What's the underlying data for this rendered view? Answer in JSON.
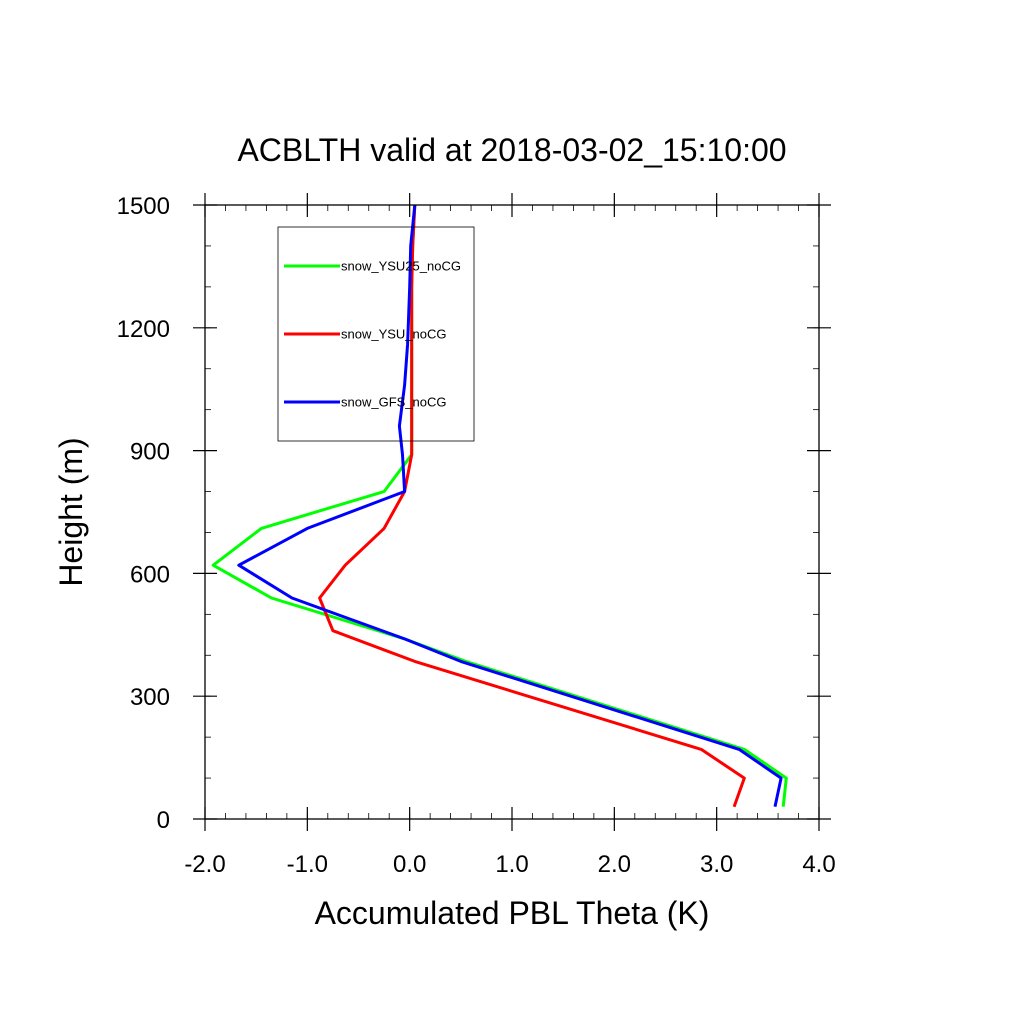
{
  "chart_data": {
    "type": "line",
    "title": "ACBLTH valid at 2018-03-02_15:10:00",
    "xlabel": "Accumulated PBL Theta (K)",
    "ylabel": "Height (m)",
    "xlim": [
      -2.0,
      4.0
    ],
    "ylim": [
      0,
      1500
    ],
    "x_ticks": [
      -2.0,
      -1.0,
      0.0,
      1.0,
      2.0,
      3.0,
      4.0
    ],
    "x_tick_labels": [
      "-2.0",
      "-1.0",
      "0.0",
      "1.0",
      "2.0",
      "3.0",
      "4.0"
    ],
    "y_ticks": [
      0,
      300,
      600,
      900,
      1200,
      1500
    ],
    "y_tick_labels": [
      "0",
      "300",
      "600",
      "900",
      "1200",
      "1500"
    ],
    "grid": false,
    "legend_position": "upper-left inside",
    "series": [
      {
        "name": "snow_YSU25_noCG",
        "color": "#00ff00",
        "points": [
          [
            3.65,
            30
          ],
          [
            3.68,
            100
          ],
          [
            3.27,
            170
          ],
          [
            0.55,
            385
          ],
          [
            -0.05,
            440
          ],
          [
            -1.35,
            540
          ],
          [
            -1.92,
            620
          ],
          [
            -1.45,
            710
          ],
          [
            -0.25,
            800
          ],
          [
            0.02,
            890
          ],
          [
            0.02,
            1000
          ],
          [
            0.02,
            1100
          ],
          [
            0.02,
            1200
          ],
          [
            0.02,
            1300
          ],
          [
            0.03,
            1400
          ],
          [
            0.05,
            1500
          ]
        ]
      },
      {
        "name": "snow_YSU_noCG",
        "color": "#ff0000",
        "points": [
          [
            3.17,
            30
          ],
          [
            3.27,
            100
          ],
          [
            2.85,
            170
          ],
          [
            0.05,
            385
          ],
          [
            -0.75,
            460
          ],
          [
            -0.88,
            540
          ],
          [
            -0.63,
            620
          ],
          [
            -0.25,
            710
          ],
          [
            -0.05,
            800
          ],
          [
            0.02,
            890
          ],
          [
            0.02,
            1000
          ],
          [
            0.02,
            1100
          ],
          [
            0.02,
            1200
          ],
          [
            0.02,
            1300
          ],
          [
            0.03,
            1400
          ],
          [
            0.05,
            1500
          ]
        ]
      },
      {
        "name": "snow_GFS_noCG",
        "color": "#0000ff",
        "points": [
          [
            3.57,
            30
          ],
          [
            3.63,
            100
          ],
          [
            3.22,
            170
          ],
          [
            0.5,
            385
          ],
          [
            -0.05,
            440
          ],
          [
            -1.15,
            540
          ],
          [
            -1.67,
            620
          ],
          [
            -1.0,
            710
          ],
          [
            -0.05,
            800
          ],
          [
            -0.07,
            890
          ],
          [
            -0.1,
            960
          ],
          [
            -0.05,
            1060
          ],
          [
            -0.02,
            1160
          ],
          [
            0.0,
            1300
          ],
          [
            0.01,
            1400
          ],
          [
            0.05,
            1500
          ]
        ]
      }
    ]
  }
}
